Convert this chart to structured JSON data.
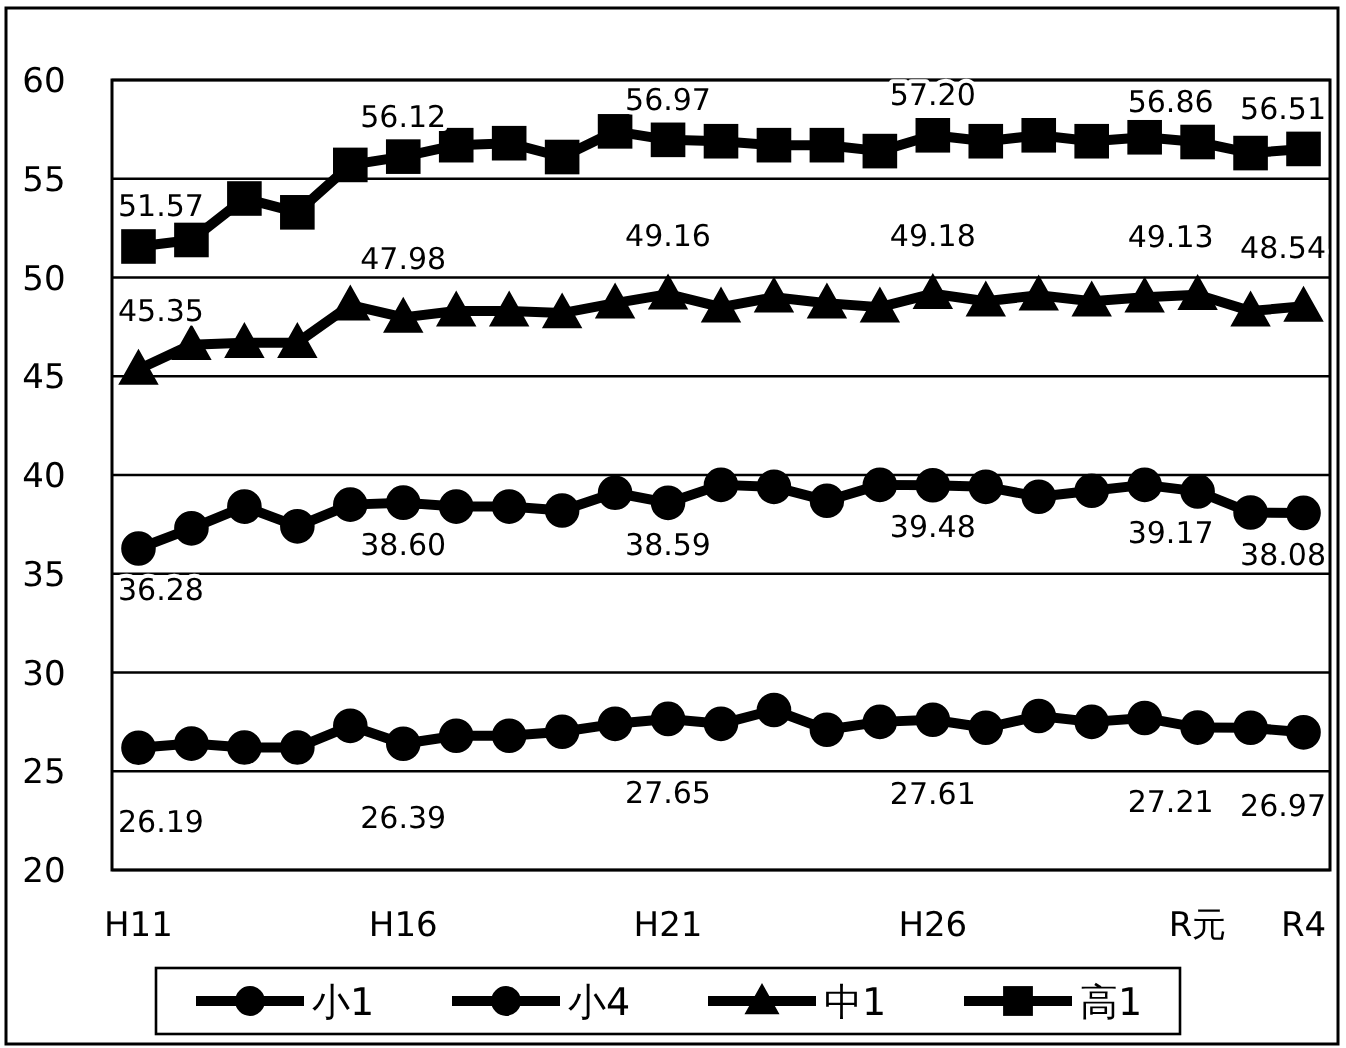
{
  "chart_data": {
    "type": "line",
    "categories": [
      "H11",
      null,
      null,
      null,
      null,
      "H16",
      null,
      null,
      null,
      null,
      "H21",
      null,
      null,
      null,
      null,
      "H26",
      null,
      null,
      null,
      null,
      "R元",
      null,
      "R4"
    ],
    "ylim": [
      20,
      60
    ],
    "yticks": [
      20,
      25,
      30,
      35,
      40,
      45,
      50,
      55,
      60
    ],
    "grid": "y",
    "legend": "bottom",
    "line_style": "solid",
    "series": [
      {
        "name": "小1",
        "color": "#000000",
        "marker": "circle",
        "values": [
          26.19,
          26.4,
          26.2,
          26.2,
          27.3,
          26.39,
          26.8,
          26.8,
          27.0,
          27.4,
          27.65,
          27.4,
          28.1,
          27.1,
          27.5,
          27.61,
          27.2,
          27.8,
          27.5,
          27.7,
          27.21,
          27.2,
          26.97
        ],
        "value_labels": [
          "26.19",
          null,
          null,
          null,
          null,
          "26.39",
          null,
          null,
          null,
          null,
          "27.65",
          null,
          null,
          null,
          null,
          "27.61",
          null,
          null,
          null,
          null,
          "27.21",
          null,
          "26.97"
        ]
      },
      {
        "name": "小4",
        "color": "#000000",
        "marker": "circle",
        "values": [
          36.28,
          37.3,
          38.4,
          37.4,
          38.5,
          38.6,
          38.4,
          38.4,
          38.2,
          39.1,
          38.59,
          39.5,
          39.4,
          38.7,
          39.5,
          39.48,
          39.4,
          38.9,
          39.2,
          39.5,
          39.17,
          38.1,
          38.08
        ],
        "value_labels": [
          "36.28",
          null,
          null,
          null,
          null,
          "38.60",
          null,
          null,
          null,
          null,
          "38.59",
          null,
          null,
          null,
          null,
          "39.48",
          null,
          null,
          null,
          null,
          "39.17",
          null,
          "38.08"
        ]
      },
      {
        "name": "中1",
        "color": "#000000",
        "marker": "triangle",
        "values": [
          45.35,
          46.6,
          46.7,
          46.7,
          48.6,
          47.98,
          48.3,
          48.3,
          48.2,
          48.7,
          49.16,
          48.5,
          49.0,
          48.7,
          48.5,
          49.18,
          48.8,
          49.1,
          48.8,
          49.0,
          49.13,
          48.3,
          48.54
        ],
        "value_labels": [
          "45.35",
          null,
          null,
          null,
          null,
          "47.98",
          null,
          null,
          null,
          null,
          "49.16",
          null,
          null,
          null,
          null,
          "49.18",
          null,
          null,
          null,
          null,
          "49.13",
          null,
          "48.54"
        ]
      },
      {
        "name": "高1",
        "color": "#000000",
        "marker": "square",
        "values": [
          51.57,
          51.9,
          54.0,
          53.3,
          55.7,
          56.12,
          56.7,
          56.8,
          56.1,
          57.4,
          56.97,
          56.9,
          56.7,
          56.7,
          56.4,
          57.2,
          56.9,
          57.2,
          56.9,
          57.1,
          56.86,
          56.3,
          56.51
        ],
        "value_labels": [
          "51.57",
          null,
          null,
          null,
          null,
          "56.12",
          null,
          null,
          null,
          null,
          "56.97",
          null,
          null,
          null,
          null,
          "57.20",
          null,
          null,
          null,
          null,
          "56.86",
          null,
          "56.51"
        ]
      }
    ]
  }
}
